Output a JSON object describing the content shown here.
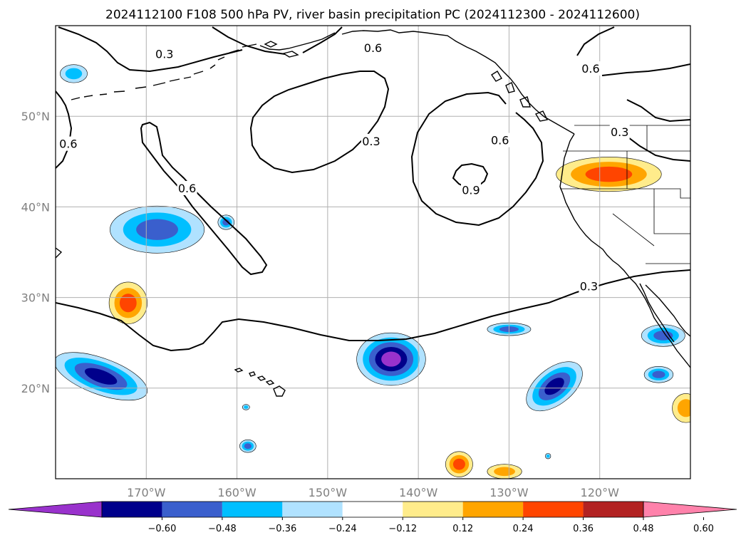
{
  "title": "2024112100 F108 500 hPa PV, river basin precipitation PC (2024112300 - 2024112600)",
  "map": {
    "lon_ticks": [
      {
        "lon": -170,
        "label": "170°W"
      },
      {
        "lon": -160,
        "label": "160°W"
      },
      {
        "lon": -150,
        "label": "150°W"
      },
      {
        "lon": -140,
        "label": "140°W"
      },
      {
        "lon": -130,
        "label": "130°W"
      },
      {
        "lon": -120,
        "label": "120°W"
      }
    ],
    "lat_ticks": [
      {
        "lat": 20,
        "label": "20°N"
      },
      {
        "lat": 30,
        "label": "30°N"
      },
      {
        "lat": 40,
        "label": "40°N"
      },
      {
        "lat": 50,
        "label": "50°N"
      }
    ],
    "contour_labels": [
      {
        "text": "0.3",
        "lon": -168.0,
        "lat": 56.8
      },
      {
        "text": "0.6",
        "lon": -145.0,
        "lat": 57.5
      },
      {
        "text": "0.6",
        "lon": -121.0,
        "lat": 55.2
      },
      {
        "text": "0.6",
        "lon": -178.6,
        "lat": 46.9
      },
      {
        "text": "0.6",
        "lon": -165.5,
        "lat": 42.0
      },
      {
        "text": "0.3",
        "lon": -145.2,
        "lat": 47.2
      },
      {
        "text": "0.6",
        "lon": -131.0,
        "lat": 47.3
      },
      {
        "text": "0.9",
        "lon": -134.2,
        "lat": 41.8
      },
      {
        "text": "0.3",
        "lon": -117.8,
        "lat": 48.2
      },
      {
        "text": "0.3",
        "lon": -121.2,
        "lat": 31.2
      }
    ]
  },
  "colorbar": {
    "levels": [
      -0.6,
      -0.48,
      -0.36,
      -0.24,
      -0.12,
      0.12,
      0.24,
      0.36,
      0.48,
      0.6
    ],
    "tick_labels": [
      "−0.60",
      "−0.48",
      "−0.36",
      "−0.24",
      "−0.12",
      "0.12",
      "0.24",
      "0.36",
      "0.48",
      "0.60"
    ],
    "colors": [
      "#9932cc",
      "#00008b",
      "#3a5fcd",
      "#00bfff",
      "#b0e2ff",
      "#ffffff",
      "#ffec8b",
      "#ffa500",
      "#ff4500",
      "#b22222",
      "#ff82ab"
    ]
  },
  "precip_blobs": [
    {
      "lon": -168.8,
      "lat": 37.5,
      "rx": 5.2,
      "ry": 2.6,
      "rot": 0,
      "level": -0.36
    },
    {
      "lon": -178.0,
      "lat": 54.7,
      "rx": 1.5,
      "ry": 1.0,
      "rot": 0,
      "level": -0.24
    },
    {
      "lon": -161.2,
      "lat": 38.3,
      "rx": 0.9,
      "ry": 0.8,
      "rot": 0,
      "level": -0.36
    },
    {
      "lon": -172.0,
      "lat": 29.4,
      "rx": 2.1,
      "ry": 2.3,
      "rot": 0,
      "level": 0.36
    },
    {
      "lon": -175.0,
      "lat": 21.3,
      "rx": 5.4,
      "ry": 2.0,
      "rot": 20,
      "level": -0.48
    },
    {
      "lon": -143.0,
      "lat": 23.2,
      "rx": 3.8,
      "ry": 2.9,
      "rot": 0,
      "level": -0.6
    },
    {
      "lon": -158.8,
      "lat": 13.6,
      "rx": 0.9,
      "ry": 0.7,
      "rot": 0,
      "level": -0.36
    },
    {
      "lon": -159.0,
      "lat": 17.9,
      "rx": 0.4,
      "ry": 0.3,
      "rot": 0,
      "level": -0.24
    },
    {
      "lon": -130.0,
      "lat": 26.5,
      "rx": 2.4,
      "ry": 0.7,
      "rot": 0,
      "level": -0.36
    },
    {
      "lon": -125.0,
      "lat": 20.2,
      "rx": 3.6,
      "ry": 2.0,
      "rot": -38,
      "level": -0.48
    },
    {
      "lon": -113.5,
      "lat": 21.5,
      "rx": 1.6,
      "ry": 0.9,
      "rot": 0,
      "level": -0.36
    },
    {
      "lon": -113.0,
      "lat": 25.8,
      "rx": 2.4,
      "ry": 1.2,
      "rot": 0,
      "level": -0.36
    },
    {
      "lon": -119.0,
      "lat": 43.6,
      "rx": 5.8,
      "ry": 1.9,
      "rot": 0,
      "level": 0.36
    },
    {
      "lon": -135.5,
      "lat": 11.6,
      "rx": 1.5,
      "ry": 1.4,
      "rot": 0,
      "level": 0.36
    },
    {
      "lon": -130.5,
      "lat": 10.8,
      "rx": 1.9,
      "ry": 0.8,
      "rot": 0,
      "level": 0.24
    },
    {
      "lon": -110.5,
      "lat": 17.8,
      "rx": 1.5,
      "ry": 1.6,
      "rot": 0,
      "level": 0.24
    },
    {
      "lon": -125.7,
      "lat": 12.5,
      "rx": 0.3,
      "ry": 0.3,
      "rot": 0,
      "level": -0.24
    }
  ]
}
